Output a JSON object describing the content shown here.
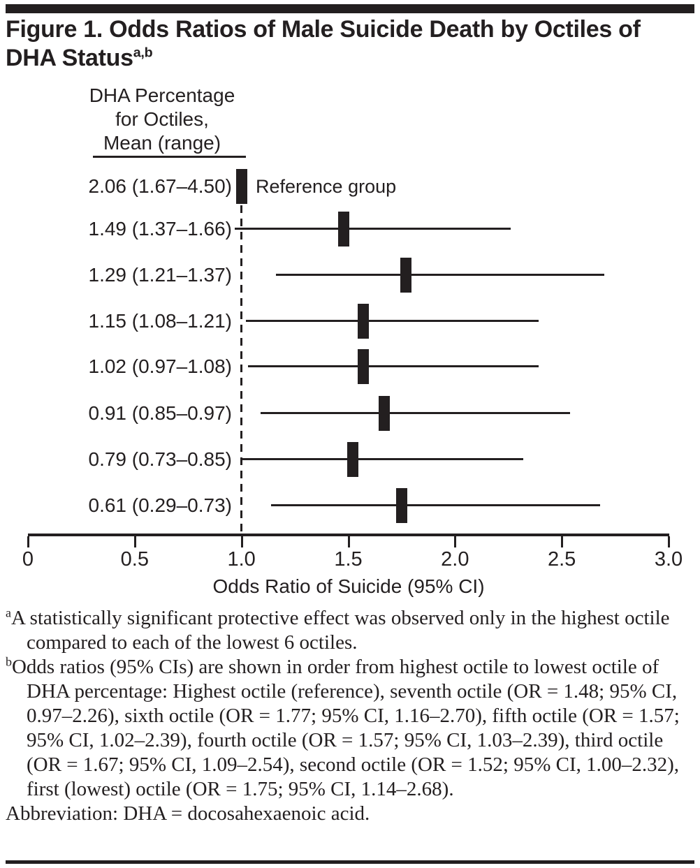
{
  "title": {
    "lines": [
      "Figure 1. Odds Ratios of Male Suicide Death by Octiles of",
      "DHA Status"
    ],
    "sup": "a,b"
  },
  "chart_data": {
    "type": "scatter",
    "subtype": "forest-plot",
    "title": "Figure 1. Odds Ratios of Male Suicide Death by Octiles of DHA Status",
    "xlabel": "Odds Ratio of Suicide (95% CI)",
    "xlim": [
      0,
      3.0
    ],
    "x_ticks": [
      0,
      0.5,
      1.0,
      1.5,
      2.0,
      2.5,
      3.0
    ],
    "x_tick_labels": [
      "0",
      "0.5",
      "1.0",
      "1.5",
      "2.0",
      "2.5",
      "3.0"
    ],
    "reference_line_x": 1.0,
    "grid": false,
    "column_header": [
      "DHA Percentage",
      "for Octiles,",
      "Mean (range)"
    ],
    "rows": [
      {
        "label": "2.06 (1.67–4.50)",
        "octile": "Highest octile",
        "or": 1.0,
        "ci_low": null,
        "ci_high": null,
        "reference": true,
        "note": "Reference group"
      },
      {
        "label": "1.49 (1.37–1.66)",
        "octile": "Seventh octile",
        "or": 1.48,
        "ci_low": 0.97,
        "ci_high": 2.26,
        "reference": false,
        "note": ""
      },
      {
        "label": "1.29 (1.21–1.37)",
        "octile": "Sixth octile",
        "or": 1.77,
        "ci_low": 1.16,
        "ci_high": 2.7,
        "reference": false,
        "note": ""
      },
      {
        "label": "1.15 (1.08–1.21)",
        "octile": "Fifth octile",
        "or": 1.57,
        "ci_low": 1.02,
        "ci_high": 2.39,
        "reference": false,
        "note": ""
      },
      {
        "label": "1.02 (0.97–1.08)",
        "octile": "Fourth octile",
        "or": 1.57,
        "ci_low": 1.03,
        "ci_high": 2.39,
        "reference": false,
        "note": ""
      },
      {
        "label": "0.91 (0.85–0.97)",
        "octile": "Third octile",
        "or": 1.67,
        "ci_low": 1.09,
        "ci_high": 2.54,
        "reference": false,
        "note": ""
      },
      {
        "label": "0.79 (0.73–0.85)",
        "octile": "Second octile",
        "or": 1.52,
        "ci_low": 1.0,
        "ci_high": 2.32,
        "reference": false,
        "note": ""
      },
      {
        "label": "0.61 (0.29–0.73)",
        "octile": "First (lowest) octile",
        "or": 1.75,
        "ci_low": 1.14,
        "ci_high": 2.68,
        "reference": false,
        "note": ""
      }
    ]
  },
  "footnotes": [
    {
      "sup": "a",
      "text": "A statistically significant protective effect was observed only in the highest octile compared to each of the lowest 6 octiles."
    },
    {
      "sup": "b",
      "text": "Odds ratios (95% CIs) are shown in order from highest octile to lowest octile of DHA percentage: Highest octile (reference), seventh octile (OR = 1.48; 95% CI, 0.97–2.26), sixth octile (OR = 1.77; 95% CI, 1.16–2.70), fifth octile (OR = 1.57; 95% CI, 1.02–2.39), fourth octile (OR = 1.57; 95% CI, 1.03–2.39), third octile (OR = 1.67; 95% CI, 1.09–2.54), second octile (OR = 1.52; 95% CI, 1.00–2.32), first (lowest) octile (OR = 1.75; 95% CI, 1.14–2.68)."
    }
  ],
  "abbreviation": "Abbreviation: DHA = docosahexaenoic acid.",
  "ink_color": "#231f20"
}
